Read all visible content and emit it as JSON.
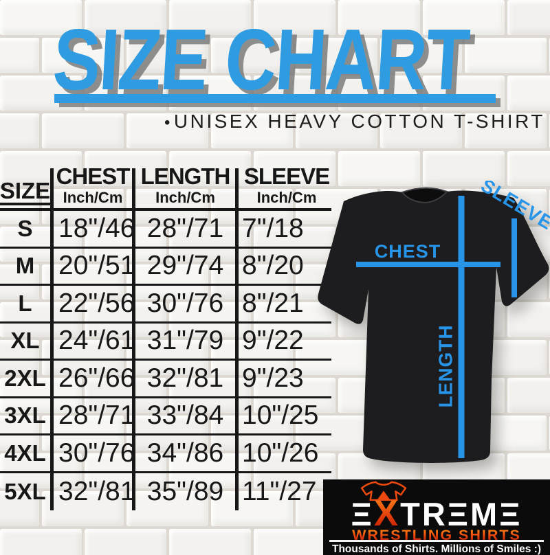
{
  "header": {
    "title": "SIZE CHART",
    "bullet": "•",
    "subtitle": "UNISEX HEAVY COTTON T-SHIRT"
  },
  "table": {
    "columns": [
      {
        "label": "SIZE",
        "sublabel": ""
      },
      {
        "label": "CHEST",
        "sublabel": "Inch/Cm"
      },
      {
        "label": "LENGTH",
        "sublabel": "Inch/Cm"
      },
      {
        "label": "SLEEVE",
        "sublabel": "Inch/Cm"
      }
    ],
    "rows": [
      [
        "S",
        "18\"/46",
        "28\"/71",
        "7\"/18"
      ],
      [
        "M",
        "20\"/51",
        "29\"/74",
        "8\"/20"
      ],
      [
        "L",
        "22\"/56",
        "30\"/76",
        "8\"/21"
      ],
      [
        "XL",
        "24\"/61",
        "31\"/79",
        "9\"/22"
      ],
      [
        "2XL",
        "26\"/66",
        "32\"/81",
        "9\"/23"
      ],
      [
        "3XL",
        "28\"/71",
        "33\"/84",
        "10\"/25"
      ],
      [
        "4XL",
        "30\"/76",
        "34\"/86",
        "10\"/26"
      ],
      [
        "5XL",
        "32\"/81",
        "35\"/89",
        "11\"/27"
      ]
    ]
  },
  "diagram": {
    "chest_label": "CHEST",
    "length_label": "LENGTH",
    "sleeve_label": "SLEEVE"
  },
  "logo": {
    "brand_full": "EXTREME",
    "brand_start": "Ξ",
    "brand_x": "X",
    "brand_end": "TRΞMΞ",
    "line2": "WRESTLING SHIRTS",
    "tagline": "Thousands of Shirts. Millions of Smiles :)"
  },
  "colors": {
    "accent_blue": "#2F9CE1",
    "diagram_line_blue": "#2794E8",
    "table_ink": "#171717",
    "shirt_black": "#1D1D1F",
    "logo_background": "#0B0B0B",
    "logo_orange": "#EE4A10",
    "logo_red": "#B01205"
  }
}
